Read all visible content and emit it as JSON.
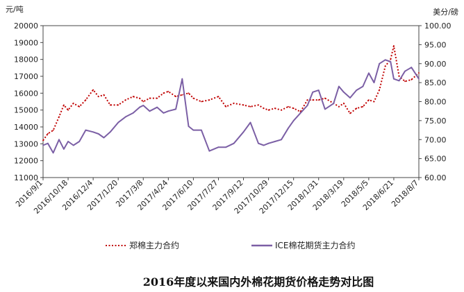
{
  "chart_data": {
    "type": "line",
    "title": "2016年度以来国内外棉花期货价格走势对比图",
    "y_left_unit": "元/吨",
    "y_right_unit": "美分/磅",
    "y_left_lim": [
      11000,
      20000
    ],
    "y_right_lim": [
      60.0,
      100.0
    ],
    "y_left_ticks": [
      "11000",
      "12000",
      "13000",
      "14000",
      "15000",
      "16000",
      "17000",
      "18000",
      "19000",
      "20000"
    ],
    "y_right_ticks": [
      "60.00",
      "65.00",
      "70.00",
      "75.00",
      "80.00",
      "85.00",
      "90.00",
      "95.00",
      "100.00"
    ],
    "x_tick_labels": [
      "2016/9/1",
      "2016/10/18",
      "2016/12/4",
      "2017/1/20",
      "2017/3/8",
      "2017/4/24",
      "2017/6/10",
      "2017/7/27",
      "2017/9/12",
      "2017/10/29",
      "2017/12/15",
      "2018/1/31",
      "2018/3/19",
      "2018/5/5",
      "2018/6/21",
      "2018/8/7"
    ],
    "grid": false,
    "legend_position": "bottom",
    "series": [
      {
        "name": "郑棉主力合约",
        "axis": "left",
        "color": "#c00000",
        "style": "dotted",
        "x": [
          "2016/9/1",
          "2016/9/10",
          "2016/9/20",
          "2016/10/1",
          "2016/10/10",
          "2016/10/18",
          "2016/10/28",
          "2016/11/8",
          "2016/11/20",
          "2016/12/4",
          "2016/12/14",
          "2016/12/24",
          "2017/1/5",
          "2017/1/20",
          "2017/2/3",
          "2017/2/17",
          "2017/3/1",
          "2017/3/8",
          "2017/3/20",
          "2017/4/3",
          "2017/4/15",
          "2017/4/24",
          "2017/5/8",
          "2017/5/20",
          "2017/6/1",
          "2017/6/10",
          "2017/6/25",
          "2017/7/10",
          "2017/7/27",
          "2017/8/10",
          "2017/8/25",
          "2017/9/12",
          "2017/9/25",
          "2017/10/10",
          "2017/10/20",
          "2017/10/29",
          "2017/11/10",
          "2017/11/22",
          "2017/12/5",
          "2017/12/15",
          "2017/12/28",
          "2018/1/10",
          "2018/1/20",
          "2018/1/31",
          "2018/2/12",
          "2018/2/28",
          "2018/3/10",
          "2018/3/19",
          "2018/3/31",
          "2018/4/12",
          "2018/4/24",
          "2018/5/5",
          "2018/5/15",
          "2018/5/25",
          "2018/6/5",
          "2018/6/15",
          "2018/6/21",
          "2018/7/1",
          "2018/7/12",
          "2018/7/24",
          "2018/8/7"
        ],
        "values": [
          13200,
          13600,
          13800,
          14600,
          15300,
          15000,
          15400,
          15200,
          15600,
          16200,
          15800,
          15900,
          15300,
          15300,
          15600,
          15800,
          15700,
          15500,
          15700,
          15700,
          16000,
          16100,
          15800,
          15900,
          16000,
          15700,
          15500,
          15600,
          15800,
          15200,
          15400,
          15300,
          15200,
          15300,
          15100,
          15000,
          15100,
          15000,
          15200,
          15100,
          14900,
          15600,
          15600,
          15600,
          15700,
          15400,
          15200,
          15400,
          14800,
          15100,
          15200,
          15600,
          15500,
          16200,
          17600,
          18000,
          18800,
          17000,
          16700,
          16800,
          17200
        ]
      },
      {
        "name": "ICE棉花期货主力合约",
        "axis": "right",
        "color": "#7b5fa5",
        "style": "solid",
        "x": [
          "2016/9/1",
          "2016/9/10",
          "2016/9/20",
          "2016/10/1",
          "2016/10/10",
          "2016/10/18",
          "2016/10/28",
          "2016/11/8",
          "2016/11/20",
          "2016/12/4",
          "2016/12/14",
          "2016/12/24",
          "2017/1/5",
          "2017/1/20",
          "2017/2/3",
          "2017/2/17",
          "2017/3/1",
          "2017/3/8",
          "2017/3/20",
          "2017/4/3",
          "2017/4/15",
          "2017/4/24",
          "2017/5/8",
          "2017/5/20",
          "2017/6/1",
          "2017/6/10",
          "2017/6/25",
          "2017/7/10",
          "2017/7/27",
          "2017/8/10",
          "2017/8/25",
          "2017/9/12",
          "2017/9/25",
          "2017/10/10",
          "2017/10/20",
          "2017/10/29",
          "2017/11/10",
          "2017/11/22",
          "2017/12/5",
          "2017/12/15",
          "2017/12/28",
          "2018/1/10",
          "2018/1/20",
          "2018/1/31",
          "2018/2/12",
          "2018/2/28",
          "2018/3/10",
          "2018/3/19",
          "2018/3/31",
          "2018/4/12",
          "2018/4/24",
          "2018/5/5",
          "2018/5/15",
          "2018/5/25",
          "2018/6/5",
          "2018/6/15",
          "2018/6/21",
          "2018/7/1",
          "2018/7/12",
          "2018/7/24",
          "2018/8/7"
        ],
        "values": [
          68.5,
          69.0,
          66.5,
          70.0,
          67.5,
          69.5,
          68.5,
          69.5,
          72.5,
          72.0,
          71.5,
          70.5,
          72.0,
          74.5,
          76.0,
          77.0,
          78.5,
          79.0,
          77.5,
          78.5,
          77.0,
          77.5,
          78.0,
          86.0,
          73.5,
          72.5,
          72.5,
          67.0,
          68.0,
          68.0,
          69.0,
          72.0,
          74.5,
          69.0,
          68.5,
          69.0,
          69.5,
          70.0,
          73.0,
          75.0,
          77.0,
          79.0,
          82.5,
          83.0,
          78.0,
          79.5,
          84.0,
          82.5,
          81.0,
          83.0,
          84.0,
          87.5,
          85.0,
          90.0,
          91.0,
          90.5,
          86.0,
          85.5,
          88.0,
          89.0,
          86.0
        ]
      }
    ]
  }
}
